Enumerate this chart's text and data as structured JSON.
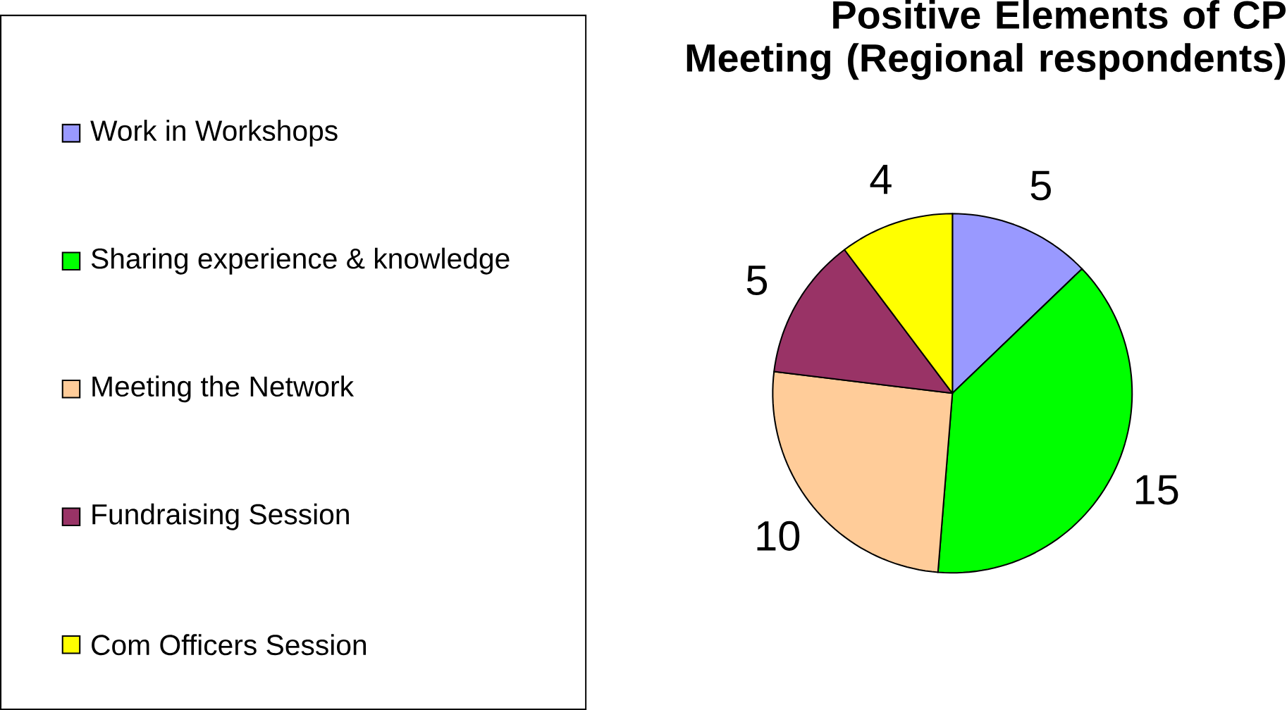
{
  "chart_data": {
    "type": "pie",
    "title": "Positive Elements of CP Meeting (Regional respondents)",
    "categories": [
      "Work in Workshops",
      "Sharing experience & knowledge",
      "Meeting the Network",
      "Fundraising Session",
      "Com Officers Session"
    ],
    "values": [
      5,
      15,
      10,
      5,
      4
    ],
    "colors": [
      "#9999ff",
      "#00ff00",
      "#ffcc99",
      "#993366",
      "#ffff00"
    ],
    "data_labels": true,
    "legend": "left"
  }
}
